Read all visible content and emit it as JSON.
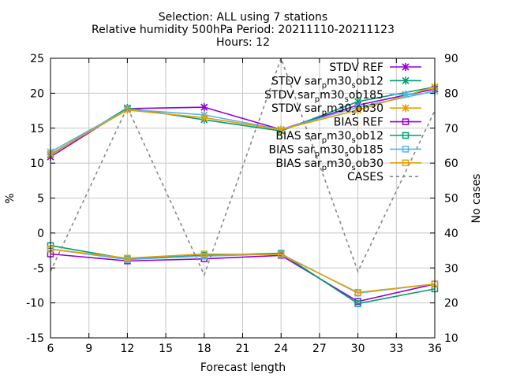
{
  "chart_data": {
    "type": "line",
    "title_lines": [
      "Selection: ALL using     7 stations",
      "Relative humidity 500hPa   Period: 20211110-20211123",
      "Hours: 12"
    ],
    "xlabel": "Forecast length",
    "ylabel": "%",
    "y2label": "No cases",
    "x": [
      6,
      12,
      18,
      24,
      30,
      36
    ],
    "xticks": [
      "6",
      "9",
      "12",
      "15",
      "18",
      "21",
      "24",
      "27",
      "30",
      "33",
      "36"
    ],
    "xlim": [
      6,
      36
    ],
    "ylim": [
      -15,
      25
    ],
    "yticks": [
      "25",
      "20",
      "15",
      "10",
      "5",
      "0",
      "-5",
      "-10",
      "-15"
    ],
    "y2lim": [
      10,
      90
    ],
    "y2ticks": [
      "90",
      "80",
      "70",
      "60",
      "50",
      "40",
      "30",
      "20",
      "10"
    ],
    "grid": true,
    "legend_position": "top-right",
    "series": [
      {
        "name": "STDV REF",
        "color": "#9400d3",
        "marker": "x-star",
        "axis": "y",
        "values": [
          10.9,
          17.8,
          18.0,
          14.8,
          18.3,
          20.6
        ]
      },
      {
        "name": "STDV sar_pm30_sob12",
        "label_parts": [
          "STDV sar",
          "p",
          "m30",
          "s",
          "ob12"
        ],
        "color": "#009e73",
        "marker": "x-star",
        "axis": "y",
        "values": [
          11.2,
          17.9,
          16.2,
          14.6,
          18.8,
          20.9
        ]
      },
      {
        "name": "STDV sar_pm30_sob185",
        "label_parts": [
          "STDV sar",
          "p",
          "m30",
          "s",
          "ob185"
        ],
        "color": "#56b4e9",
        "marker": "x-star",
        "axis": "y",
        "values": [
          11.6,
          17.7,
          16.9,
          14.8,
          18.0,
          20.3
        ]
      },
      {
        "name": "STDV sar_pm30_sob30",
        "label_parts": [
          "STDV sar",
          "p",
          "m30",
          "s",
          "ob30"
        ],
        "color": "#e69f00",
        "marker": "x-star",
        "axis": "y",
        "values": [
          11.3,
          17.6,
          16.5,
          14.8,
          17.6,
          20.9
        ]
      },
      {
        "name": "BIAS REF",
        "color": "#9400d3",
        "marker": "square",
        "axis": "y",
        "values": [
          -3.0,
          -4.0,
          -3.7,
          -3.2,
          -9.8,
          -7.3
        ]
      },
      {
        "name": "BIAS sar_pm30_sob12",
        "label_parts": [
          "BIAS sar",
          "p",
          "m30",
          "s",
          "ob12"
        ],
        "color": "#009e73",
        "marker": "square",
        "axis": "y",
        "values": [
          -1.8,
          -3.7,
          -3.2,
          -2.9,
          -10.1,
          -8.0
        ]
      },
      {
        "name": "BIAS sar_pm30_sob185",
        "label_parts": [
          "BIAS sar",
          "p",
          "m30",
          "s",
          "ob185"
        ],
        "color": "#56b4e9",
        "marker": "square",
        "axis": "y",
        "values": [
          -2.3,
          -3.8,
          -3.3,
          -3.0,
          -8.6,
          -7.3
        ]
      },
      {
        "name": "BIAS sar_pm30_sob30",
        "label_parts": [
          "BIAS sar",
          "p",
          "m30",
          "s",
          "ob30"
        ],
        "color": "#e69f00",
        "marker": "square",
        "axis": "y",
        "values": [
          -2.3,
          -3.6,
          -3.0,
          -3.1,
          -8.5,
          -7.3
        ]
      },
      {
        "name": "CASES",
        "color": "#888888",
        "marker": "none",
        "dash": true,
        "axis": "y2",
        "values": [
          29,
          76,
          28,
          90,
          29,
          75
        ]
      }
    ]
  }
}
